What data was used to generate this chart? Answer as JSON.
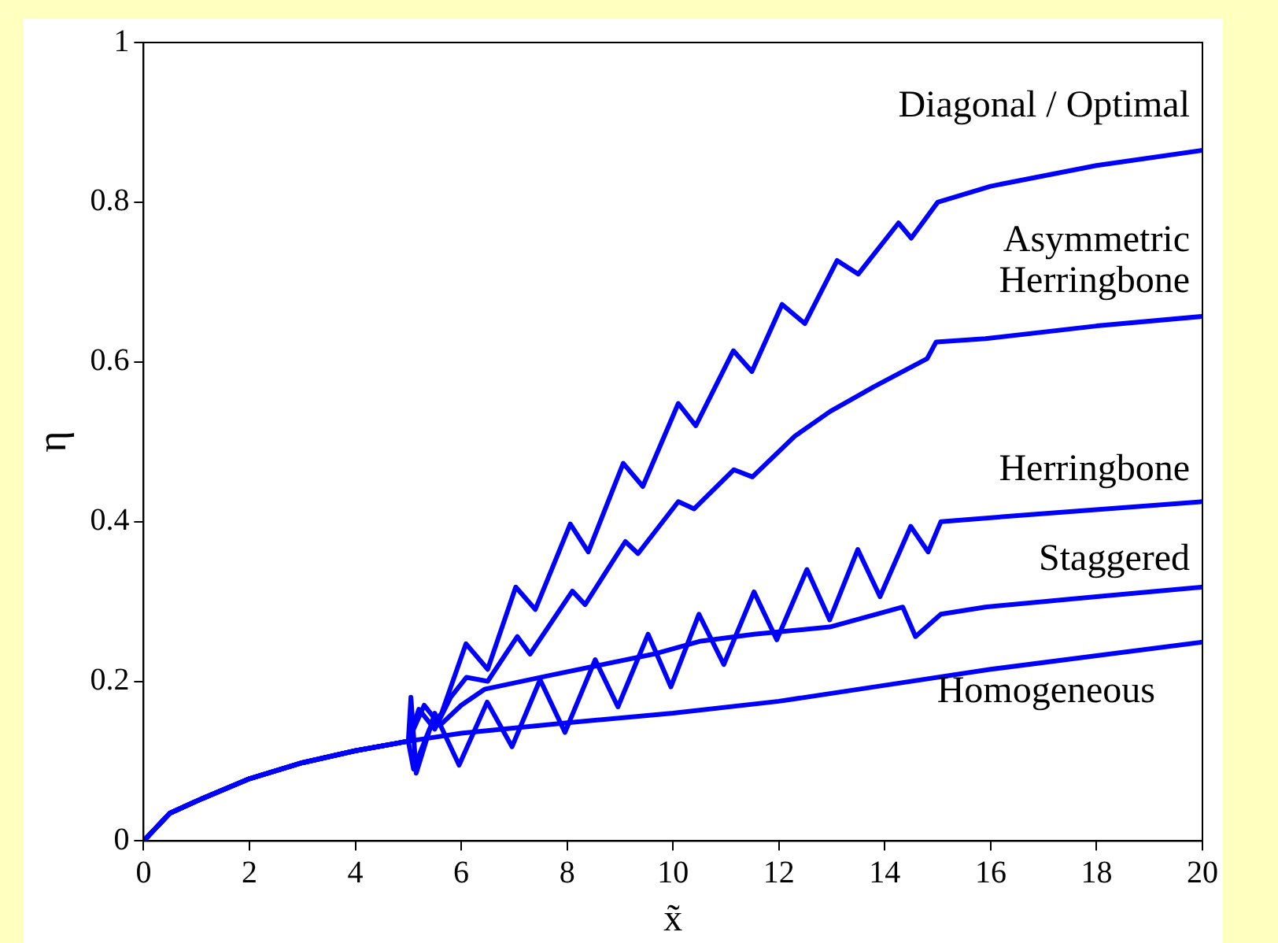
{
  "chart_data": {
    "type": "line",
    "xlabel": "x̃",
    "ylabel": "η",
    "xlim": [
      0,
      20
    ],
    "ylim": [
      0,
      1
    ],
    "xticks": [
      0,
      2,
      4,
      6,
      8,
      10,
      12,
      14,
      16,
      18,
      20
    ],
    "yticks": [
      0,
      0.2,
      0.4,
      0.6,
      0.8,
      1
    ],
    "grid": false,
    "legend": false,
    "marker": "none",
    "line_style": "solid",
    "series": [
      {
        "name": "Diagonal / Optimal",
        "color": "#0000ff",
        "x": [
          0,
          0.5,
          1,
          2,
          3,
          4,
          5,
          5.1,
          5.4,
          5.63,
          6.09,
          6.5,
          7.03,
          7.4,
          8.06,
          8.4,
          9.06,
          9.43,
          10.1,
          10.43,
          11.14,
          11.49,
          12.06,
          12.49,
          13.1,
          13.5,
          14.26,
          14.5,
          15,
          16,
          18,
          20
        ],
        "values": [
          0,
          0.035,
          0.05,
          0.078,
          0.098,
          0.113,
          0.125,
          0.09,
          0.14,
          0.16,
          0.247,
          0.215,
          0.318,
          0.29,
          0.397,
          0.362,
          0.473,
          0.444,
          0.548,
          0.52,
          0.614,
          0.588,
          0.672,
          0.648,
          0.727,
          0.71,
          0.774,
          0.755,
          0.8,
          0.82,
          0.846,
          0.865
        ]
      },
      {
        "name": "Asymmetric Herringbone",
        "color": "#0000ff",
        "x": [
          0,
          0.5,
          1,
          2,
          3,
          4,
          5,
          5.2,
          5.5,
          5.8,
          6.1,
          6.5,
          7.06,
          7.3,
          8.1,
          8.34,
          9.1,
          9.34,
          10.1,
          10.4,
          11.15,
          11.5,
          12.3,
          12.97,
          13.8,
          14.8,
          14.97,
          15.9,
          18,
          20
        ],
        "values": [
          0,
          0.035,
          0.05,
          0.078,
          0.098,
          0.113,
          0.125,
          0.165,
          0.14,
          0.18,
          0.205,
          0.2,
          0.256,
          0.234,
          0.313,
          0.296,
          0.375,
          0.36,
          0.425,
          0.416,
          0.465,
          0.456,
          0.507,
          0.538,
          0.569,
          0.604,
          0.625,
          0.629,
          0.645,
          0.657
        ]
      },
      {
        "name": "Herringbone",
        "color": "#0000ff",
        "x": [
          0,
          0.5,
          1,
          2,
          3,
          4,
          5,
          5.05,
          5.15,
          5.5,
          5.96,
          6.49,
          6.96,
          7.49,
          7.96,
          8.53,
          8.96,
          9.53,
          9.96,
          10.49,
          10.96,
          11.53,
          11.96,
          12.53,
          12.96,
          13.49,
          13.91,
          14.49,
          14.82,
          15.06,
          17,
          20
        ],
        "values": [
          0,
          0.035,
          0.05,
          0.078,
          0.098,
          0.113,
          0.125,
          0.18,
          0.085,
          0.16,
          0.095,
          0.174,
          0.118,
          0.202,
          0.136,
          0.227,
          0.168,
          0.259,
          0.193,
          0.284,
          0.221,
          0.312,
          0.252,
          0.34,
          0.277,
          0.365,
          0.306,
          0.394,
          0.362,
          0.4,
          0.41,
          0.425
        ]
      },
      {
        "name": "Staggered",
        "color": "#0000ff",
        "x": [
          0,
          0.5,
          1,
          2,
          3,
          4,
          5,
          5.3,
          5.6,
          6,
          6.44,
          7.72,
          9.63,
          10.5,
          11.53,
          12.96,
          14.34,
          14.58,
          15.06,
          15.9,
          18,
          20
        ],
        "values": [
          0,
          0.035,
          0.05,
          0.078,
          0.098,
          0.113,
          0.125,
          0.17,
          0.145,
          0.17,
          0.19,
          0.208,
          0.234,
          0.25,
          0.259,
          0.268,
          0.293,
          0.256,
          0.284,
          0.293,
          0.306,
          0.318
        ]
      },
      {
        "name": "Homogeneous",
        "color": "#0000ff",
        "x": [
          0,
          0.5,
          1,
          2,
          3,
          4,
          5,
          6,
          8,
          10,
          12,
          14,
          16,
          18,
          20
        ],
        "values": [
          0,
          0.035,
          0.05,
          0.078,
          0.098,
          0.113,
          0.125,
          0.135,
          0.148,
          0.16,
          0.175,
          0.195,
          0.215,
          0.232,
          0.249
        ]
      }
    ]
  }
}
